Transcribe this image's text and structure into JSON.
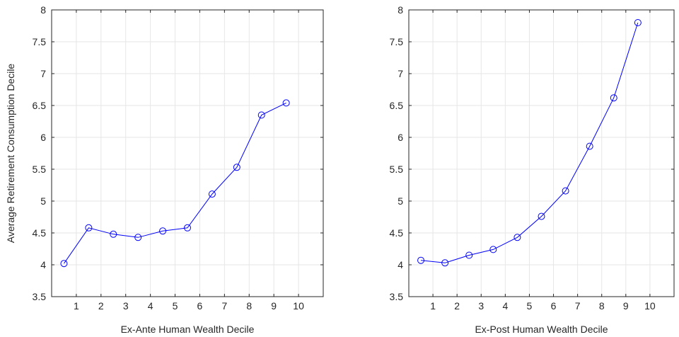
{
  "chart_data": [
    {
      "type": "line",
      "xlabel": "Ex-Ante Human Wealth Decile",
      "ylabel": "Average Retirement Consumption Decile",
      "xlim": [
        0,
        11
      ],
      "ylim": [
        3.5,
        8
      ],
      "xticks": [
        1,
        2,
        3,
        4,
        5,
        6,
        7,
        8,
        9,
        10
      ],
      "yticks": [
        3.5,
        4,
        4.5,
        5,
        5.5,
        6,
        6.5,
        7,
        7.5,
        8
      ],
      "grid": true,
      "color": "#0000ff",
      "marker": "circle-open",
      "x": [
        0.5,
        1.5,
        2.5,
        3.5,
        4.5,
        5.5,
        6.5,
        7.5,
        8.5,
        9.5
      ],
      "y": [
        4.02,
        4.58,
        4.48,
        4.43,
        4.53,
        4.58,
        5.11,
        5.53,
        6.35,
        6.54
      ]
    },
    {
      "type": "line",
      "xlabel": "Ex-Post Human Wealth Decile",
      "ylabel": "",
      "xlim": [
        0,
        11
      ],
      "ylim": [
        3.5,
        8
      ],
      "xticks": [
        1,
        2,
        3,
        4,
        5,
        6,
        7,
        8,
        9,
        10
      ],
      "yticks": [
        3.5,
        4,
        4.5,
        5,
        5.5,
        6,
        6.5,
        7,
        7.5,
        8
      ],
      "grid": true,
      "color": "#0000ff",
      "marker": "circle-open",
      "x": [
        0.5,
        1.5,
        2.5,
        3.5,
        4.5,
        5.5,
        6.5,
        7.5,
        8.5,
        9.5
      ],
      "y": [
        4.07,
        4.03,
        4.15,
        4.24,
        4.43,
        4.76,
        5.16,
        5.86,
        6.62,
        7.8
      ]
    }
  ]
}
